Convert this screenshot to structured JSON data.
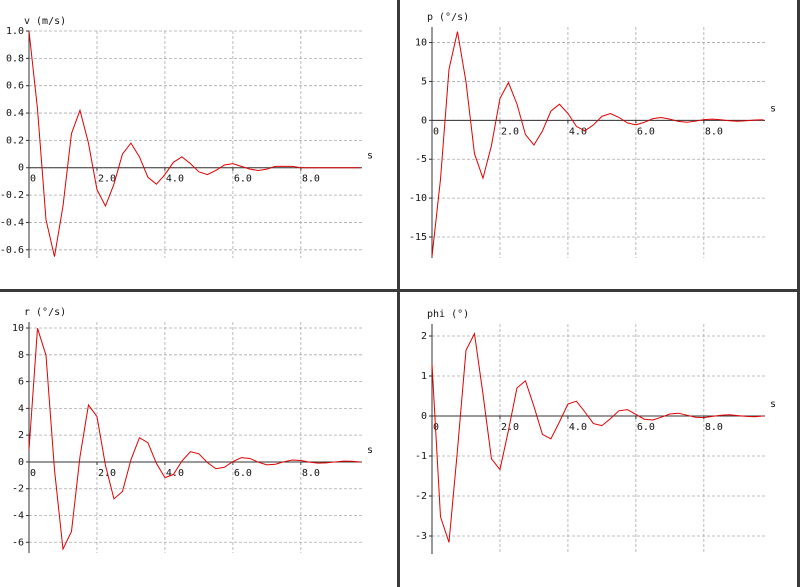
{
  "chart_data": [
    {
      "type": "line",
      "y_label": "v (m/s)",
      "x_label": "s",
      "x": [
        0,
        0.25,
        0.5,
        0.75,
        1,
        1.25,
        1.5,
        1.75,
        2,
        2.25,
        2.5,
        2.75,
        3,
        3.25,
        3.5,
        3.75,
        4,
        4.25,
        4.5,
        4.75,
        5,
        5.25,
        5.5,
        5.75,
        6,
        6.25,
        6.5,
        6.75,
        7,
        7.25,
        7.5,
        7.75,
        8,
        8.25,
        8.5,
        8.75,
        9,
        9.25,
        9.5,
        9.75
      ],
      "series": [
        {
          "color": "#e00000",
          "values": [
            1.0,
            0.43,
            -0.38,
            -0.65,
            -0.28,
            0.25,
            0.42,
            0.18,
            -0.16,
            -0.28,
            -0.12,
            0.1,
            0.18,
            0.08,
            -0.07,
            -0.12,
            -0.05,
            0.04,
            0.08,
            0.03,
            -0.03,
            -0.05,
            -0.02,
            0.02,
            0.03,
            0.01,
            -0.01,
            -0.02,
            -0.01,
            0.01,
            0.01,
            0.01,
            0,
            0,
            0,
            0,
            0,
            0,
            0,
            0
          ]
        }
      ],
      "xlim": [
        0,
        9.8
      ],
      "ylim": [
        -0.66,
        1.0
      ],
      "xticks": [
        0,
        {
          "value": 2,
          "label": "2.0"
        },
        {
          "value": 4,
          "label": "4.0"
        },
        {
          "value": 6,
          "label": "6.0"
        },
        {
          "value": 8,
          "label": "8.0"
        }
      ],
      "yticks": [
        {
          "value": 1,
          "label": "1.0"
        },
        0.8,
        0.6,
        0.4,
        0.2,
        0,
        -0.2,
        -0.4,
        -0.6
      ],
      "grid": true
    },
    {
      "type": "line",
      "y_label": "p (°/s)",
      "x_label": "s",
      "x": [
        0,
        0.25,
        0.5,
        0.75,
        1,
        1.25,
        1.5,
        1.75,
        2,
        2.25,
        2.5,
        2.75,
        3,
        3.25,
        3.5,
        3.75,
        4,
        4.25,
        4.5,
        4.75,
        5,
        5.25,
        5.5,
        5.75,
        6,
        6.25,
        6.5,
        6.75,
        7,
        7.25,
        7.5,
        7.75,
        8,
        8.25,
        8.5,
        8.75,
        9,
        9.25,
        9.5,
        9.75
      ],
      "series": [
        {
          "color": "#e00000",
          "values": [
            -17.5,
            -7.59,
            6.58,
            11.41,
            4.95,
            -4.29,
            -7.44,
            -3.23,
            2.8,
            4.85,
            2.1,
            -1.83,
            -3.17,
            -1.37,
            1.19,
            2.07,
            0.89,
            -0.78,
            -1.35,
            -0.59,
            0.51,
            0.88,
            0.38,
            -0.33,
            -0.58,
            -0.25,
            0.22,
            0.37,
            0.16,
            -0.14,
            -0.25,
            -0.11,
            0.09,
            0.16,
            0.07,
            -0.06,
            -0.11,
            -0.05,
            0.04,
            0.07
          ]
        }
      ],
      "xlim": [
        0,
        9.8
      ],
      "ylim": [
        -17.7,
        12
      ],
      "xticks": [
        0,
        {
          "value": 2,
          "label": "2.0"
        },
        {
          "value": 4,
          "label": "4.0"
        },
        {
          "value": 6,
          "label": "6.0"
        },
        {
          "value": 8,
          "label": "8.0"
        }
      ],
      "yticks": [
        10,
        5,
        0,
        -5,
        -10,
        -15
      ],
      "grid": true
    },
    {
      "type": "line",
      "y_label": "r (°/s)",
      "x_label": "s",
      "x": [
        0,
        0.25,
        0.5,
        0.75,
        1,
        1.25,
        1.5,
        1.75,
        2,
        2.25,
        2.5,
        2.75,
        3,
        3.25,
        3.5,
        3.75,
        4,
        4.25,
        4.5,
        4.75,
        5,
        5.25,
        5.5,
        5.75,
        6,
        6.25,
        6.5,
        6.75,
        7,
        7.25,
        7.5,
        7.75,
        8,
        8.25,
        8.5,
        8.75,
        9,
        9.25,
        9.5,
        9.75
      ],
      "series": [
        {
          "color": "#e00000",
          "values": [
            0.9,
            9.98,
            7.97,
            -0.58,
            -6.51,
            -5.19,
            0.38,
            4.25,
            3.39,
            -0.25,
            -2.76,
            -2.21,
            0.16,
            1.81,
            1.44,
            -0.11,
            -1.17,
            -0.94,
            0.07,
            0.77,
            0.61,
            -0.04,
            -0.51,
            -0.4,
            0.03,
            0.32,
            0.26,
            -0.02,
            -0.22,
            -0.17,
            0.01,
            0.14,
            0.11,
            -0.01,
            -0.09,
            -0.07,
            0,
            0.06,
            0.05,
            0
          ]
        }
      ],
      "xlim": [
        0,
        9.8
      ],
      "ylim": [
        -6.8,
        10.45
      ],
      "xticks": [
        0,
        {
          "value": 2,
          "label": "2.0"
        },
        {
          "value": 4,
          "label": "4.0"
        },
        {
          "value": 6,
          "label": "6.0"
        },
        {
          "value": 8,
          "label": "8.0"
        }
      ],
      "yticks": [
        10,
        8,
        6,
        4,
        2,
        0,
        -2,
        -4,
        -6
      ],
      "grid": true
    },
    {
      "type": "line",
      "y_label": "phi (°)",
      "x_label": "s",
      "x": [
        0,
        0.25,
        0.5,
        0.75,
        1,
        1.25,
        1.5,
        1.75,
        2,
        2.25,
        2.5,
        2.75,
        3,
        3.25,
        3.5,
        3.75,
        4,
        4.25,
        4.5,
        4.75,
        5,
        5.25,
        5.5,
        5.75,
        6,
        6.25,
        6.5,
        6.75,
        7,
        7.25,
        7.5,
        7.75,
        8,
        8.25,
        8.5,
        8.75,
        9,
        9.25,
        9.5,
        9.75
      ],
      "series": [
        {
          "color": "#e00000",
          "values": [
            1.3,
            -2.52,
            -3.16,
            -0.85,
            1.64,
            2.06,
            0.55,
            -1.07,
            -1.34,
            -0.36,
            0.7,
            0.88,
            0.24,
            -0.46,
            -0.57,
            -0.15,
            0.3,
            0.37,
            0.1,
            -0.19,
            -0.24,
            -0.07,
            0.13,
            0.16,
            0.04,
            -0.08,
            -0.1,
            -0.03,
            0.05,
            0.07,
            0.02,
            -0.03,
            -0.04,
            -0.01,
            0.02,
            0.03,
            0.01,
            -0.01,
            -0.02,
            0
          ]
        }
      ],
      "xlim": [
        0,
        9.8
      ],
      "ylim": [
        -3.45,
        2.3
      ],
      "xticks": [
        0,
        {
          "value": 2,
          "label": "2.0"
        },
        {
          "value": 4,
          "label": "4.0"
        },
        {
          "value": 6,
          "label": "6.0"
        },
        {
          "value": 8,
          "label": "8.0"
        }
      ],
      "yticks": [
        2,
        1,
        0,
        -1,
        -2,
        -3
      ],
      "grid": true
    }
  ]
}
